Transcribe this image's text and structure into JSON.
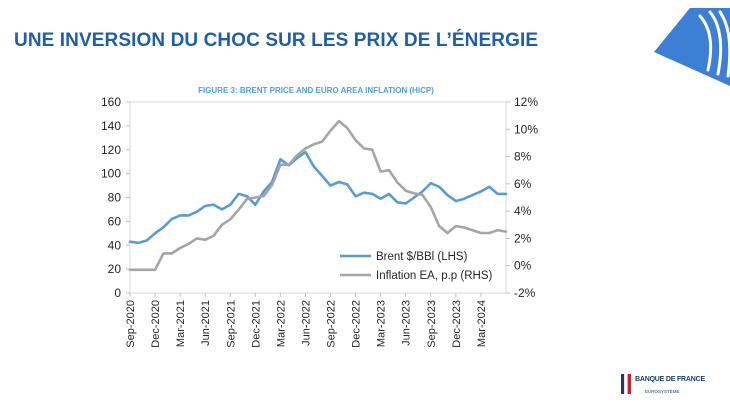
{
  "slide": {
    "title": "UNE INVERSION DU CHOC SUR LES PRIX DE L’ÉNERGIE"
  },
  "logo": {
    "name": "BANQUE DE FRANCE",
    "subtitle": "EUROSYSTÈME"
  },
  "colors": {
    "title": "#1f5eab",
    "brent": "#5b9bd5",
    "inflation": "#a5a5a5",
    "chart_title": "#4f9fde",
    "deco": "#3e7fd6"
  },
  "chart_data": {
    "type": "line",
    "title": "FIGURE 3: BRENT PRICE AND EURO AREA INFLATION (HICP)",
    "x_tick_labels": [
      "Sep-2020",
      "Dec-2020",
      "Mar-2021",
      "Jun-2021",
      "Sep-2021",
      "Dec-2021",
      "Mar-2022",
      "Jun-2022",
      "Sep-2022",
      "Dec-2022",
      "Mar-2023",
      "Jun-2023",
      "Sep-2023",
      "Dec-2023",
      "Mar-2024"
    ],
    "x_start": "2020-09",
    "x_end": "2024-06",
    "left_axis": {
      "min": 0,
      "max": 160,
      "step": 20,
      "tick_labels": [
        "0",
        "20",
        "40",
        "60",
        "80",
        "100",
        "120",
        "140",
        "160"
      ]
    },
    "right_axis": {
      "min": -2,
      "max": 12,
      "step": 2,
      "tick_labels": [
        "-2%",
        "0%",
        "2%",
        "4%",
        "6%",
        "8%",
        "10%",
        "12%"
      ]
    },
    "grid": false,
    "legend_position": "bottom-right",
    "series": [
      {
        "name": "Brent $/BBl (LHS)",
        "axis": "left",
        "color": "#5b9bd5",
        "x": [
          "2020-09",
          "2020-10",
          "2020-11",
          "2020-12",
          "2021-01",
          "2021-02",
          "2021-03",
          "2021-04",
          "2021-05",
          "2021-06",
          "2021-07",
          "2021-08",
          "2021-09",
          "2021-10",
          "2021-11",
          "2021-12",
          "2022-01",
          "2022-02",
          "2022-03",
          "2022-04",
          "2022-05",
          "2022-06",
          "2022-07",
          "2022-08",
          "2022-09",
          "2022-10",
          "2022-11",
          "2022-12",
          "2023-01",
          "2023-02",
          "2023-03",
          "2023-04",
          "2023-05",
          "2023-06",
          "2023-07",
          "2023-08",
          "2023-09",
          "2023-10",
          "2023-11",
          "2023-12",
          "2024-01",
          "2024-02",
          "2024-03",
          "2024-04",
          "2024-05",
          "2024-06"
        ],
        "values": [
          43,
          42,
          44,
          50,
          55,
          62,
          65,
          65,
          68,
          73,
          74,
          70,
          74,
          83,
          81,
          74,
          85,
          93,
          112,
          107,
          113,
          118,
          106,
          98,
          90,
          93,
          91,
          81,
          84,
          83,
          79,
          83,
          76,
          75,
          80,
          85,
          92,
          89,
          82,
          77,
          79,
          82,
          85,
          89,
          83,
          83
        ]
      },
      {
        "name": "Inflation EA, p.p (RHS)",
        "axis": "right",
        "color": "#a5a5a5",
        "x": [
          "2020-09",
          "2020-10",
          "2020-11",
          "2020-12",
          "2021-01",
          "2021-02",
          "2021-03",
          "2021-04",
          "2021-05",
          "2021-06",
          "2021-07",
          "2021-08",
          "2021-09",
          "2021-10",
          "2021-11",
          "2021-12",
          "2022-01",
          "2022-02",
          "2022-03",
          "2022-04",
          "2022-05",
          "2022-06",
          "2022-07",
          "2022-08",
          "2022-09",
          "2022-10",
          "2022-11",
          "2022-12",
          "2023-01",
          "2023-02",
          "2023-03",
          "2023-04",
          "2023-05",
          "2023-06",
          "2023-07",
          "2023-08",
          "2023-09",
          "2023-10",
          "2023-11",
          "2023-12",
          "2024-01",
          "2024-02",
          "2024-03",
          "2024-04",
          "2024-05",
          "2024-06"
        ],
        "values": [
          -0.3,
          -0.3,
          -0.3,
          -0.3,
          0.9,
          0.9,
          1.3,
          1.6,
          2.0,
          1.9,
          2.2,
          3.0,
          3.4,
          4.1,
          4.9,
          5.0,
          5.1,
          5.9,
          7.4,
          7.4,
          8.1,
          8.6,
          8.9,
          9.1,
          9.9,
          10.6,
          10.1,
          9.2,
          8.6,
          8.5,
          6.9,
          7.0,
          6.1,
          5.5,
          5.3,
          5.2,
          4.3,
          2.9,
          2.4,
          2.9,
          2.8,
          2.6,
          2.4,
          2.4,
          2.6,
          2.5
        ]
      }
    ]
  }
}
